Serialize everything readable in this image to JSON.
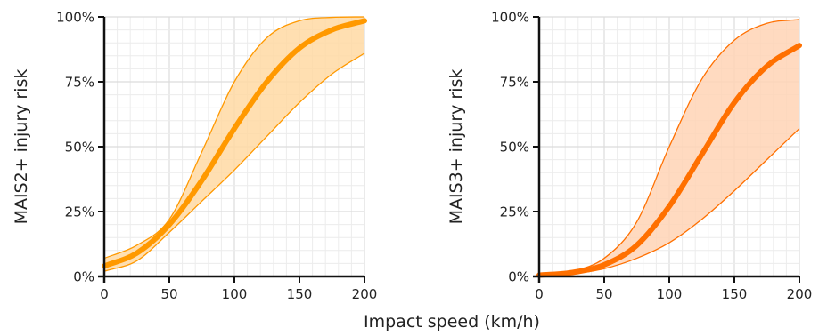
{
  "xlabel": "Impact speed (km/h)",
  "chart_data": [
    {
      "type": "line",
      "ylabel": "MAIS2+ injury risk",
      "xlim": [
        0,
        200
      ],
      "ylim": [
        0,
        1
      ],
      "xticks": [
        0,
        50,
        100,
        150,
        200
      ],
      "xtick_labels": [
        "0",
        "50",
        "100",
        "150",
        "200"
      ],
      "yticks": [
        0,
        0.25,
        0.5,
        0.75,
        1
      ],
      "ytick_labels": [
        "0%",
        "25%",
        "50%",
        "75%",
        "100%"
      ],
      "grid": true,
      "x": [
        0,
        25,
        50,
        75,
        100,
        125,
        150,
        175,
        200
      ],
      "series": [
        {
          "role": "estimate",
          "values": [
            0.04,
            0.09,
            0.2,
            0.37,
            0.57,
            0.75,
            0.88,
            0.95,
            0.985
          ]
        },
        {
          "role": "upper-bound",
          "values": [
            0.07,
            0.12,
            0.22,
            0.48,
            0.75,
            0.92,
            0.985,
            0.998,
            1.0
          ]
        },
        {
          "role": "lower-bound",
          "values": [
            0.02,
            0.06,
            0.17,
            0.29,
            0.41,
            0.54,
            0.67,
            0.78,
            0.86
          ]
        }
      ],
      "colors": {
        "line": "#FF9900",
        "band": "#FFD9A3",
        "band_edge": "#FF9900"
      }
    },
    {
      "type": "line",
      "ylabel": "MAIS3+ injury risk",
      "xlim": [
        0,
        200
      ],
      "ylim": [
        0,
        1
      ],
      "xticks": [
        0,
        50,
        100,
        150,
        200
      ],
      "xtick_labels": [
        "0",
        "50",
        "100",
        "150",
        "200"
      ],
      "yticks": [
        0,
        0.25,
        0.5,
        0.75,
        1
      ],
      "ytick_labels": [
        "0%",
        "25%",
        "50%",
        "75%",
        "100%"
      ],
      "grid": true,
      "x": [
        0,
        25,
        50,
        75,
        100,
        125,
        150,
        175,
        200
      ],
      "series": [
        {
          "role": "estimate",
          "values": [
            0.005,
            0.015,
            0.045,
            0.12,
            0.27,
            0.47,
            0.67,
            0.81,
            0.89
          ]
        },
        {
          "role": "upper-bound",
          "values": [
            0.008,
            0.02,
            0.07,
            0.21,
            0.5,
            0.76,
            0.91,
            0.975,
            0.99
          ]
        },
        {
          "role": "lower-bound",
          "values": [
            0.003,
            0.01,
            0.03,
            0.07,
            0.13,
            0.22,
            0.33,
            0.45,
            0.57
          ]
        }
      ],
      "colors": {
        "line": "#FF7000",
        "band": "#FFD4B5",
        "band_edge": "#FF7000"
      }
    }
  ]
}
